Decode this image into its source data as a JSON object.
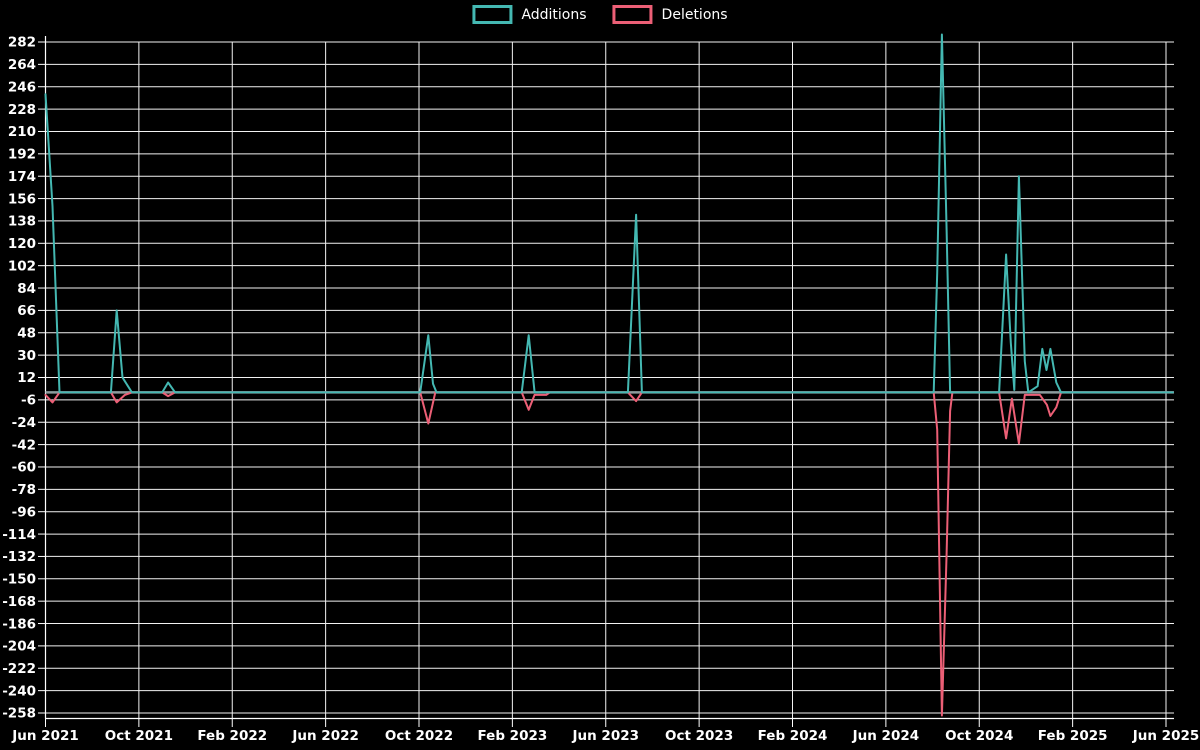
{
  "colors": {
    "background": "#000000",
    "grid": "#f2f2f2",
    "axis": "#ffffff",
    "zero_line": "#8c9b9d",
    "text": "#ffffff",
    "additions": "#44b8b2",
    "deletions": "#ec5f76"
  },
  "chart_data": {
    "type": "line",
    "title": "",
    "xlabel": "",
    "ylabel": "",
    "grid": true,
    "legend_position": "top-center",
    "x_unit": "months since Jun 2021 (weekly commit activity)",
    "xlim_months": [
      0,
      48.35
    ],
    "ylim": [
      -258,
      282
    ],
    "y_tick_step": 18,
    "y_tick_values": [
      282,
      264,
      246,
      228,
      210,
      192,
      174,
      156,
      138,
      120,
      102,
      84,
      66,
      48,
      30,
      12,
      -6,
      -24,
      -42,
      -60,
      -78,
      -96,
      -114,
      -132,
      -150,
      -168,
      -186,
      -204,
      -222,
      -240,
      -258
    ],
    "x_tick_labels": [
      "Jun 2021",
      "Oct 2021",
      "Feb 2022",
      "Jun 2022",
      "Oct 2022",
      "Feb 2023",
      "Jun 2023",
      "Oct 2023",
      "Feb 2024",
      "Jun 2024",
      "Oct 2024",
      "Feb 2025",
      "Jun 2025"
    ],
    "x_tick_positions_months": [
      0,
      4,
      8,
      12,
      16,
      20,
      24,
      28,
      32,
      36,
      40,
      44,
      48
    ],
    "zero_line": true,
    "series": [
      {
        "name": "Additions",
        "color": "#44b8b2",
        "points": [
          [
            0,
            240
          ],
          [
            0.3,
            150
          ],
          [
            0.6,
            0
          ],
          [
            2.8,
            0
          ],
          [
            3.05,
            66
          ],
          [
            3.3,
            12
          ],
          [
            3.7,
            0
          ],
          [
            5.0,
            0
          ],
          [
            5.25,
            8
          ],
          [
            5.55,
            0
          ],
          [
            16.05,
            0
          ],
          [
            16.4,
            46
          ],
          [
            16.6,
            7
          ],
          [
            16.75,
            0
          ],
          [
            20.4,
            0
          ],
          [
            20.7,
            46
          ],
          [
            20.95,
            0
          ],
          [
            24.95,
            0
          ],
          [
            25.3,
            143
          ],
          [
            25.55,
            0
          ],
          [
            38.05,
            0
          ],
          [
            38.2,
            96
          ],
          [
            38.4,
            288
          ],
          [
            38.6,
            131
          ],
          [
            38.75,
            0
          ],
          [
            40.85,
            0
          ],
          [
            41.15,
            111
          ],
          [
            41.35,
            40
          ],
          [
            41.5,
            2
          ],
          [
            41.7,
            174
          ],
          [
            41.95,
            25
          ],
          [
            42.1,
            0
          ],
          [
            42.5,
            5
          ],
          [
            42.7,
            35
          ],
          [
            42.88,
            18
          ],
          [
            43.05,
            35
          ],
          [
            43.3,
            8
          ],
          [
            43.5,
            0
          ],
          [
            48.3,
            0
          ]
        ]
      },
      {
        "name": "Deletions",
        "color": "#ec5f76",
        "points": [
          [
            0,
            -2
          ],
          [
            0.3,
            -8
          ],
          [
            0.6,
            0
          ],
          [
            2.8,
            0
          ],
          [
            3.05,
            -8
          ],
          [
            3.4,
            -2
          ],
          [
            3.7,
            0
          ],
          [
            5.0,
            0
          ],
          [
            5.25,
            -3
          ],
          [
            5.55,
            0
          ],
          [
            16.05,
            0
          ],
          [
            16.4,
            -25
          ],
          [
            16.7,
            0
          ],
          [
            20.4,
            0
          ],
          [
            20.7,
            -14
          ],
          [
            20.95,
            -2
          ],
          [
            21.45,
            -2
          ],
          [
            21.6,
            0
          ],
          [
            24.95,
            0
          ],
          [
            25.3,
            -7
          ],
          [
            25.55,
            0
          ],
          [
            38.05,
            0
          ],
          [
            38.2,
            -30
          ],
          [
            38.4,
            -260
          ],
          [
            38.6,
            -130
          ],
          [
            38.75,
            -15
          ],
          [
            38.85,
            0
          ],
          [
            40.85,
            0
          ],
          [
            41.15,
            -37
          ],
          [
            41.4,
            -5
          ],
          [
            41.7,
            -41
          ],
          [
            41.95,
            -2
          ],
          [
            42.6,
            -2
          ],
          [
            42.9,
            -10
          ],
          [
            43.05,
            -19
          ],
          [
            43.3,
            -12
          ],
          [
            43.5,
            0
          ],
          [
            48.3,
            0
          ]
        ]
      }
    ]
  }
}
